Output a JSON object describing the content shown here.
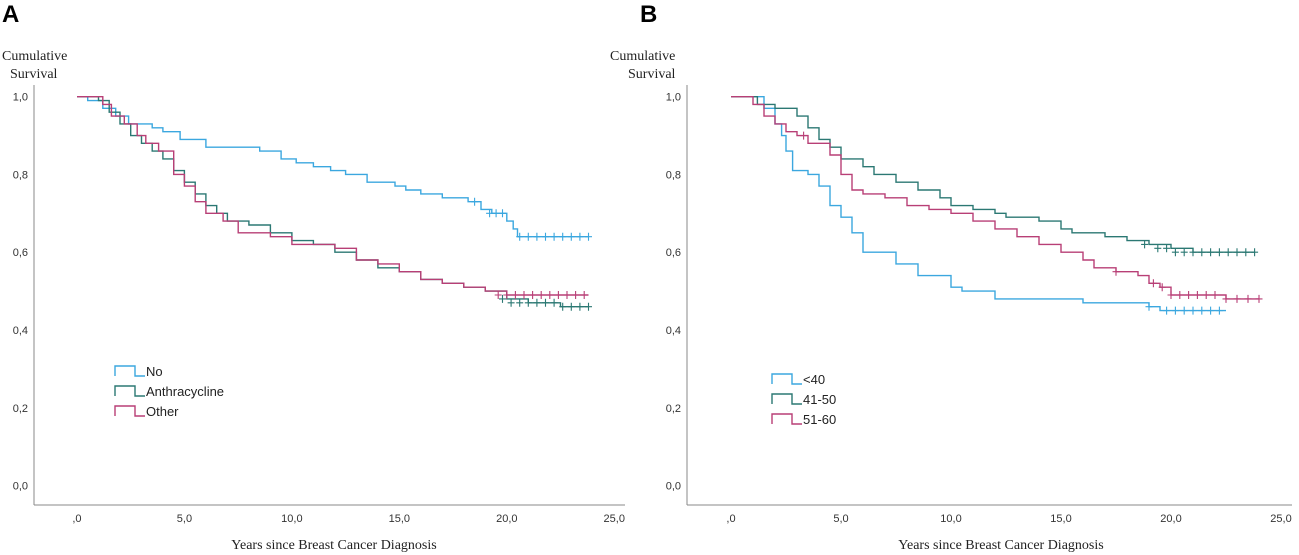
{
  "chart_data": [
    {
      "type": "line",
      "panel": "A",
      "ylabel_line1": "Cumulative",
      "ylabel_line2": "Survival",
      "xlabel": "Years since Breast Cancer Diagnosis",
      "xlim": [
        -2.0,
        25.5
      ],
      "ylim": [
        -0.05,
        1.03
      ],
      "xticks": [
        0,
        5,
        10,
        15,
        20,
        25
      ],
      "xtick_labels": [
        ",0",
        "5,0",
        "10,0",
        "15,0",
        "20,0",
        "25,0"
      ],
      "yticks": [
        0,
        0.2,
        0.4,
        0.6,
        0.8,
        1.0
      ],
      "ytick_labels": [
        "0,0",
        "0,2",
        "0,4",
        "0,6",
        "0,8",
        "1,0"
      ],
      "legend_position": "lower-left",
      "series": [
        {
          "name": "No",
          "color": "#3ba7df",
          "steps": [
            [
              0,
              1.0
            ],
            [
              0.5,
              0.99
            ],
            [
              1.2,
              0.97
            ],
            [
              1.8,
              0.95
            ],
            [
              2.4,
              0.93
            ],
            [
              3.5,
              0.92
            ],
            [
              4.0,
              0.91
            ],
            [
              4.8,
              0.89
            ],
            [
              6.0,
              0.87
            ],
            [
              8.5,
              0.86
            ],
            [
              9.5,
              0.84
            ],
            [
              10.2,
              0.83
            ],
            [
              11.0,
              0.82
            ],
            [
              11.8,
              0.81
            ],
            [
              12.5,
              0.8
            ],
            [
              13.5,
              0.78
            ],
            [
              14.8,
              0.77
            ],
            [
              15.3,
              0.76
            ],
            [
              16.0,
              0.75
            ],
            [
              17.0,
              0.74
            ],
            [
              18.2,
              0.73
            ],
            [
              18.8,
              0.71
            ],
            [
              19.3,
              0.7
            ],
            [
              20.0,
              0.68
            ],
            [
              20.3,
              0.66
            ],
            [
              20.5,
              0.64
            ],
            [
              23.8,
              0.64
            ]
          ],
          "censored": [
            [
              18.5,
              0.73
            ],
            [
              19.2,
              0.7
            ],
            [
              19.5,
              0.7
            ],
            [
              19.8,
              0.7
            ],
            [
              20.6,
              0.64
            ],
            [
              21.0,
              0.64
            ],
            [
              21.4,
              0.64
            ],
            [
              21.8,
              0.64
            ],
            [
              22.2,
              0.64
            ],
            [
              22.6,
              0.64
            ],
            [
              23.0,
              0.64
            ],
            [
              23.4,
              0.64
            ],
            [
              23.8,
              0.64
            ]
          ]
        },
        {
          "name": "Anthracycline",
          "color": "#2b7873",
          "steps": [
            [
              0,
              1.0
            ],
            [
              1.0,
              0.99
            ],
            [
              1.5,
              0.96
            ],
            [
              2.0,
              0.93
            ],
            [
              2.5,
              0.9
            ],
            [
              3.0,
              0.88
            ],
            [
              3.5,
              0.86
            ],
            [
              4.0,
              0.84
            ],
            [
              4.5,
              0.81
            ],
            [
              5.0,
              0.78
            ],
            [
              5.5,
              0.75
            ],
            [
              6.0,
              0.72
            ],
            [
              6.5,
              0.7
            ],
            [
              7.0,
              0.68
            ],
            [
              8.0,
              0.67
            ],
            [
              9.0,
              0.65
            ],
            [
              10.0,
              0.63
            ],
            [
              11.0,
              0.62
            ],
            [
              12.0,
              0.6
            ],
            [
              13.0,
              0.58
            ],
            [
              14.0,
              0.56
            ],
            [
              15.0,
              0.55
            ],
            [
              16.0,
              0.53
            ],
            [
              17.0,
              0.52
            ],
            [
              18.0,
              0.51
            ],
            [
              19.0,
              0.5
            ],
            [
              20.0,
              0.48
            ],
            [
              21.0,
              0.47
            ],
            [
              22.0,
              0.47
            ],
            [
              22.5,
              0.46
            ],
            [
              23.8,
              0.46
            ]
          ],
          "censored": [
            [
              19.8,
              0.48
            ],
            [
              20.2,
              0.47
            ],
            [
              20.6,
              0.47
            ],
            [
              21.0,
              0.47
            ],
            [
              21.4,
              0.47
            ],
            [
              21.8,
              0.47
            ],
            [
              22.2,
              0.47
            ],
            [
              22.6,
              0.46
            ],
            [
              23.0,
              0.46
            ],
            [
              23.4,
              0.46
            ],
            [
              23.8,
              0.46
            ]
          ]
        },
        {
          "name": "Other",
          "color": "#b83f76",
          "steps": [
            [
              0,
              1.0
            ],
            [
              1.2,
              0.98
            ],
            [
              1.6,
              0.95
            ],
            [
              2.2,
              0.93
            ],
            [
              2.8,
              0.9
            ],
            [
              3.2,
              0.88
            ],
            [
              3.8,
              0.86
            ],
            [
              4.5,
              0.8
            ],
            [
              5.0,
              0.77
            ],
            [
              5.5,
              0.73
            ],
            [
              6.0,
              0.7
            ],
            [
              6.8,
              0.68
            ],
            [
              7.5,
              0.65
            ],
            [
              9.0,
              0.64
            ],
            [
              10.0,
              0.62
            ],
            [
              12.0,
              0.61
            ],
            [
              13.0,
              0.58
            ],
            [
              14.0,
              0.57
            ],
            [
              15.0,
              0.55
            ],
            [
              16.0,
              0.53
            ],
            [
              17.0,
              0.52
            ],
            [
              18.0,
              0.51
            ],
            [
              19.0,
              0.5
            ],
            [
              20.0,
              0.49
            ],
            [
              23.8,
              0.49
            ]
          ],
          "censored": [
            [
              19.6,
              0.49
            ],
            [
              20.0,
              0.49
            ],
            [
              20.4,
              0.49
            ],
            [
              20.8,
              0.49
            ],
            [
              21.2,
              0.49
            ],
            [
              21.6,
              0.49
            ],
            [
              22.0,
              0.49
            ],
            [
              22.4,
              0.49
            ],
            [
              22.8,
              0.49
            ],
            [
              23.2,
              0.49
            ],
            [
              23.6,
              0.49
            ]
          ]
        }
      ]
    },
    {
      "type": "line",
      "panel": "B",
      "ylabel_line1": "Cumulative",
      "ylabel_line2": "Survival",
      "xlabel": "Years since Breast Cancer Diagnosis",
      "xlim": [
        -2.0,
        25.5
      ],
      "ylim": [
        -0.05,
        1.03
      ],
      "xticks": [
        0,
        5,
        10,
        15,
        20,
        25
      ],
      "xtick_labels": [
        ",0",
        "5,0",
        "10,0",
        "15,0",
        "20,0",
        "25,0"
      ],
      "yticks": [
        0,
        0.2,
        0.4,
        0.6,
        0.8,
        1.0
      ],
      "ytick_labels": [
        "0,0",
        "0,2",
        "0,4",
        "0,6",
        "0,8",
        "1,0"
      ],
      "legend_position": "lower-left",
      "series": [
        {
          "name": "<40",
          "color": "#3ba7df",
          "steps": [
            [
              0,
              1.0
            ],
            [
              1.5,
              0.97
            ],
            [
              2.0,
              0.93
            ],
            [
              2.3,
              0.9
            ],
            [
              2.5,
              0.86
            ],
            [
              2.8,
              0.81
            ],
            [
              3.5,
              0.8
            ],
            [
              4.0,
              0.77
            ],
            [
              4.5,
              0.72
            ],
            [
              5.0,
              0.69
            ],
            [
              5.5,
              0.65
            ],
            [
              6.0,
              0.6
            ],
            [
              7.5,
              0.57
            ],
            [
              8.5,
              0.54
            ],
            [
              10.0,
              0.51
            ],
            [
              10.5,
              0.5
            ],
            [
              12.0,
              0.48
            ],
            [
              16.0,
              0.47
            ],
            [
              19.0,
              0.46
            ],
            [
              19.5,
              0.45
            ],
            [
              22.5,
              0.45
            ]
          ],
          "censored": [
            [
              19.0,
              0.46
            ],
            [
              19.8,
              0.45
            ],
            [
              20.2,
              0.45
            ],
            [
              20.6,
              0.45
            ],
            [
              21.0,
              0.45
            ],
            [
              21.4,
              0.45
            ],
            [
              21.8,
              0.45
            ],
            [
              22.2,
              0.45
            ]
          ]
        },
        {
          "name": "41-50",
          "color": "#2b7873",
          "steps": [
            [
              0,
              1.0
            ],
            [
              1.2,
              0.98
            ],
            [
              2.0,
              0.97
            ],
            [
              3.0,
              0.95
            ],
            [
              3.5,
              0.92
            ],
            [
              4.0,
              0.89
            ],
            [
              4.5,
              0.87
            ],
            [
              5.0,
              0.84
            ],
            [
              6.0,
              0.82
            ],
            [
              6.5,
              0.8
            ],
            [
              7.5,
              0.78
            ],
            [
              8.5,
              0.76
            ],
            [
              9.5,
              0.74
            ],
            [
              10.0,
              0.72
            ],
            [
              11.0,
              0.71
            ],
            [
              12.0,
              0.7
            ],
            [
              12.5,
              0.69
            ],
            [
              14.0,
              0.68
            ],
            [
              15.0,
              0.66
            ],
            [
              15.5,
              0.65
            ],
            [
              17.0,
              0.64
            ],
            [
              18.0,
              0.63
            ],
            [
              19.0,
              0.62
            ],
            [
              20.0,
              0.61
            ],
            [
              21.0,
              0.6
            ],
            [
              23.8,
              0.6
            ]
          ],
          "censored": [
            [
              18.8,
              0.62
            ],
            [
              19.4,
              0.61
            ],
            [
              19.8,
              0.61
            ],
            [
              20.2,
              0.6
            ],
            [
              20.6,
              0.6
            ],
            [
              21.0,
              0.6
            ],
            [
              21.4,
              0.6
            ],
            [
              21.8,
              0.6
            ],
            [
              22.2,
              0.6
            ],
            [
              22.6,
              0.6
            ],
            [
              23.0,
              0.6
            ],
            [
              23.4,
              0.6
            ],
            [
              23.8,
              0.6
            ]
          ]
        },
        {
          "name": "51-60",
          "color": "#b83f76",
          "steps": [
            [
              0,
              1.0
            ],
            [
              1.0,
              0.98
            ],
            [
              1.5,
              0.95
            ],
            [
              2.0,
              0.93
            ],
            [
              2.5,
              0.91
            ],
            [
              3.0,
              0.9
            ],
            [
              3.5,
              0.88
            ],
            [
              4.5,
              0.85
            ],
            [
              5.0,
              0.8
            ],
            [
              5.5,
              0.76
            ],
            [
              6.0,
              0.75
            ],
            [
              7.0,
              0.74
            ],
            [
              8.0,
              0.72
            ],
            [
              9.0,
              0.71
            ],
            [
              10.0,
              0.7
            ],
            [
              11.0,
              0.68
            ],
            [
              12.0,
              0.66
            ],
            [
              13.0,
              0.64
            ],
            [
              14.0,
              0.62
            ],
            [
              15.0,
              0.6
            ],
            [
              16.0,
              0.58
            ],
            [
              16.5,
              0.56
            ],
            [
              17.5,
              0.55
            ],
            [
              18.5,
              0.54
            ],
            [
              19.0,
              0.52
            ],
            [
              19.5,
              0.51
            ],
            [
              20.0,
              0.49
            ],
            [
              22.0,
              0.49
            ],
            [
              22.5,
              0.48
            ],
            [
              24.0,
              0.48
            ]
          ],
          "censored": [
            [
              3.3,
              0.9
            ],
            [
              17.5,
              0.55
            ],
            [
              19.2,
              0.52
            ],
            [
              19.6,
              0.51
            ],
            [
              20.0,
              0.49
            ],
            [
              20.4,
              0.49
            ],
            [
              20.8,
              0.49
            ],
            [
              21.2,
              0.49
            ],
            [
              21.6,
              0.49
            ],
            [
              22.0,
              0.49
            ],
            [
              22.5,
              0.48
            ],
            [
              23.0,
              0.48
            ],
            [
              23.5,
              0.48
            ],
            [
              24.0,
              0.48
            ]
          ]
        }
      ]
    }
  ]
}
